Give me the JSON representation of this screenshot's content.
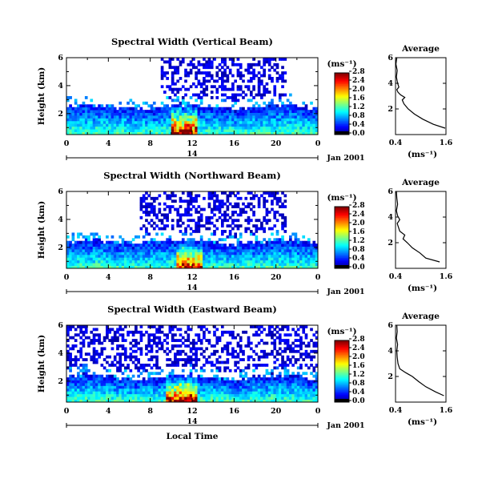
{
  "chart_data": [
    {
      "type": "heatmap",
      "title": "Spectral Width (Vertical Beam)",
      "ylabel": "Height (km)",
      "yticks": [
        "2",
        "4",
        "6"
      ],
      "xticks": [
        "0",
        "4",
        "8",
        "12",
        "16",
        "20",
        "0"
      ],
      "date_day": "14",
      "date_month": "Jan 2001",
      "ylim": [
        0.5,
        6
      ],
      "xlim": [
        0,
        24
      ],
      "colorbar": {
        "unit": "(ms⁻¹)",
        "tick_labels": [
          "0.0",
          "0.4",
          "0.8",
          "1.2",
          "1.6",
          "2.0",
          "2.4",
          "2.8"
        ],
        "range": [
          0,
          2.8
        ]
      },
      "layer": {
        "top_km": 2.5,
        "low_width": 0.35,
        "high_width": 2.6,
        "peak_hours": [
          10,
          12.5
        ],
        "upper_echo_hours": [
          9,
          21
        ]
      },
      "average_profile": {
        "title": "Average",
        "xlabel": "(ms⁻¹)",
        "xticks": [
          "0.4",
          "1.6"
        ],
        "yticks": [
          "2",
          "4",
          "6"
        ],
        "xlim": [
          0.4,
          1.6
        ],
        "ylim": [
          0,
          6
        ],
        "height_km": [
          0.5,
          0.8,
          1.2,
          1.6,
          2.0,
          2.4,
          2.7,
          2.9,
          3.1,
          3.3,
          3.5,
          3.7,
          4.0,
          4.5,
          5.0,
          5.5,
          6.0
        ],
        "width_ms": [
          1.58,
          1.3,
          1.05,
          0.85,
          0.7,
          0.6,
          0.56,
          0.62,
          0.52,
          0.46,
          0.43,
          0.48,
          0.45,
          0.42,
          0.44,
          0.41,
          0.43
        ]
      }
    },
    {
      "type": "heatmap",
      "title": "Spectral Width (Northward Beam)",
      "ylabel": "Height (km)",
      "yticks": [
        "2",
        "4",
        "6"
      ],
      "xticks": [
        "0",
        "4",
        "8",
        "12",
        "16",
        "20",
        "0"
      ],
      "date_day": "14",
      "date_month": "Jan 2001",
      "ylim": [
        0.5,
        6
      ],
      "xlim": [
        0,
        24
      ],
      "colorbar": {
        "unit": "(ms⁻¹)",
        "tick_labels": [
          "0.0",
          "0.4",
          "0.8",
          "1.2",
          "1.6",
          "2.0",
          "2.4",
          "2.8"
        ],
        "range": [
          0,
          2.8
        ]
      },
      "layer": {
        "top_km": 2.4,
        "low_width": 0.35,
        "high_width": 2.2,
        "peak_hours": [
          10.5,
          13
        ],
        "upper_echo_hours": [
          7,
          21
        ]
      },
      "average_profile": {
        "title": "Average",
        "xlabel": "(ms⁻¹)",
        "xticks": [
          "0.4",
          "1.6"
        ],
        "yticks": [
          "2",
          "4",
          "6"
        ],
        "xlim": [
          0.4,
          1.6
        ],
        "ylim": [
          0,
          6
        ],
        "height_km": [
          0.5,
          0.8,
          1.2,
          1.6,
          2.0,
          2.3,
          2.6,
          2.9,
          3.2,
          3.5,
          3.8,
          4.1,
          4.5,
          5.0,
          5.5,
          6.0
        ],
        "width_ms": [
          1.45,
          1.12,
          0.98,
          0.8,
          0.68,
          0.58,
          0.62,
          0.5,
          0.47,
          0.44,
          0.5,
          0.45,
          0.42,
          0.45,
          0.43,
          0.42
        ]
      }
    },
    {
      "type": "heatmap",
      "title": "Spectral Width (Eastward Beam)",
      "ylabel": "Height (km)",
      "yticks": [
        "2",
        "4",
        "6"
      ],
      "xticks": [
        "0",
        "4",
        "8",
        "12",
        "16",
        "20",
        "0"
      ],
      "date_day": "14",
      "date_month": "Jan 2001",
      "xlabel": "Local Time",
      "ylim": [
        0.5,
        6
      ],
      "xlim": [
        0,
        24
      ],
      "colorbar": {
        "unit": "(ms⁻¹)",
        "tick_labels": [
          "0.0",
          "0.4",
          "0.8",
          "1.2",
          "1.6",
          "2.0",
          "2.4",
          "2.8"
        ],
        "range": [
          0,
          2.8
        ]
      },
      "layer": {
        "top_km": 2.3,
        "low_width": 0.35,
        "high_width": 2.5,
        "peak_hours": [
          9.5,
          12.5
        ],
        "upper_echo_hours": [
          0,
          24
        ]
      },
      "average_profile": {
        "title": "Average",
        "xlabel": "(ms⁻¹)",
        "xticks": [
          "0.4",
          "1.6"
        ],
        "yticks": [
          "2",
          "4",
          "6"
        ],
        "xlim": [
          0.4,
          1.6
        ],
        "ylim": [
          0,
          6
        ],
        "height_km": [
          0.5,
          0.8,
          1.2,
          1.6,
          2.0,
          2.3,
          2.6,
          3.0,
          3.5,
          4.0,
          4.5,
          5.0,
          5.5,
          6.0
        ],
        "width_ms": [
          1.55,
          1.35,
          1.12,
          0.95,
          0.8,
          0.64,
          0.5,
          0.46,
          0.44,
          0.43,
          0.45,
          0.42,
          0.44,
          0.43
        ]
      }
    }
  ]
}
